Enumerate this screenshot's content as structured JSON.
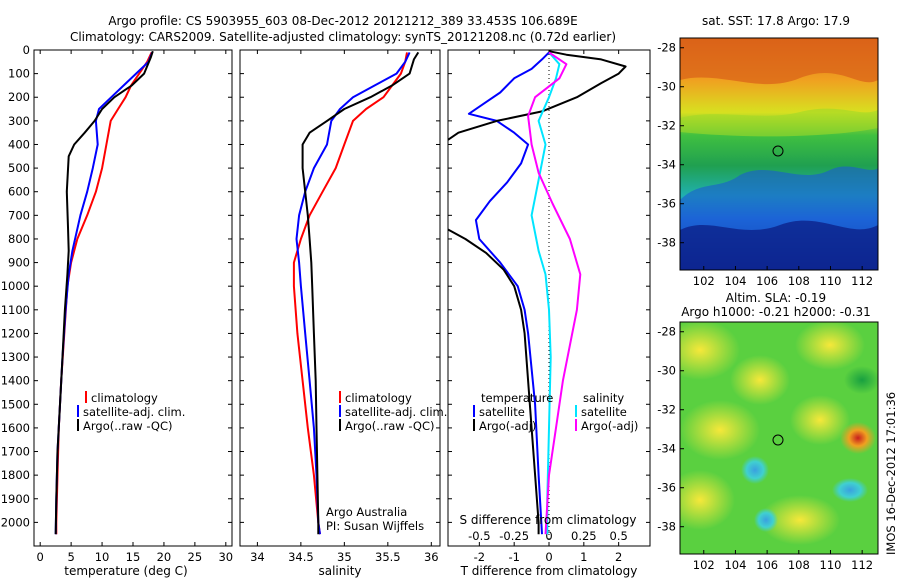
{
  "header": {
    "line1": "Argo profile: CS 5903955_603 08-Dec-2012 20121212_389 33.453S 106.689E",
    "line2": "Climatology: CARS2009. Satellite-adjusted climatology: synTS_20121208.nc (0.72d earlier)"
  },
  "side_stamp": "IMOS 16-Dec-2012 17:01:36",
  "colors": {
    "climatology": "#ff0000",
    "satellite": "#0000ff",
    "argo": "#000000",
    "sat_salt": "#00e5ff",
    "argo_salt": "#ff00ff"
  },
  "chart_data": [
    {
      "id": "temperature",
      "type": "line",
      "xlabel": "temperature (deg C)",
      "ylabel": "",
      "xlim": [
        -1,
        31
      ],
      "ylim": [
        2100,
        0
      ],
      "xticks": [
        "0",
        "5",
        "10",
        "15",
        "20",
        "25",
        "30"
      ],
      "yticks": [
        "0",
        "100",
        "200",
        "300",
        "400",
        "500",
        "600",
        "700",
        "800",
        "900",
        "1000",
        "1100",
        "1200",
        "1300",
        "1400",
        "1500",
        "1600",
        "1700",
        "1800",
        "1900",
        "2000"
      ],
      "legend": [
        "climatology",
        "satellite-adj. clim.",
        "Argo(..raw -QC)"
      ],
      "series": [
        {
          "name": "climatology",
          "color": "#ff0000",
          "points": [
            [
              18.0,
              10
            ],
            [
              17.3,
              50
            ],
            [
              16.0,
              100
            ],
            [
              14.7,
              150
            ],
            [
              13.8,
              200
            ],
            [
              12.6,
              250
            ],
            [
              11.4,
              300
            ],
            [
              10.7,
              400
            ],
            [
              10.0,
              500
            ],
            [
              9.0,
              600
            ],
            [
              7.6,
              700
            ],
            [
              6.0,
              800
            ],
            [
              5.0,
              900
            ],
            [
              4.4,
              1000
            ],
            [
              3.9,
              1200
            ],
            [
              3.4,
              1400
            ],
            [
              3.0,
              1600
            ],
            [
              2.8,
              1800
            ],
            [
              2.6,
              2000
            ],
            [
              2.6,
              2050
            ]
          ]
        },
        {
          "name": "satellite-adj. clim.",
          "color": "#0000ff",
          "points": [
            [
              18.1,
              10
            ],
            [
              17.5,
              50
            ],
            [
              15.5,
              100
            ],
            [
              13.5,
              150
            ],
            [
              11.5,
              200
            ],
            [
              9.5,
              250
            ],
            [
              9.0,
              300
            ],
            [
              9.3,
              400
            ],
            [
              8.5,
              500
            ],
            [
              7.6,
              600
            ],
            [
              6.5,
              700
            ],
            [
              5.2,
              850
            ],
            [
              4.6,
              950
            ],
            [
              4.1,
              1100
            ],
            [
              3.6,
              1300
            ],
            [
              3.2,
              1500
            ],
            [
              2.8,
              1700
            ],
            [
              2.6,
              1900
            ],
            [
              2.5,
              2050
            ]
          ]
        },
        {
          "name": "Argo(..raw -QC)",
          "color": "#000000",
          "points": [
            [
              18.2,
              5
            ],
            [
              17.9,
              30
            ],
            [
              16.8,
              100
            ],
            [
              14.8,
              150
            ],
            [
              12.0,
              200
            ],
            [
              10.0,
              250
            ],
            [
              8.8,
              300
            ],
            [
              7.2,
              350
            ],
            [
              5.5,
              400
            ],
            [
              4.6,
              450
            ],
            [
              4.3,
              600
            ],
            [
              4.5,
              750
            ],
            [
              4.6,
              850
            ],
            [
              4.4,
              950
            ],
            [
              4.0,
              1100
            ],
            [
              3.6,
              1300
            ],
            [
              3.2,
              1500
            ],
            [
              2.8,
              1700
            ],
            [
              2.6,
              1900
            ],
            [
              2.5,
              2050
            ]
          ]
        }
      ]
    },
    {
      "id": "salinity",
      "type": "line",
      "xlabel": "salinity",
      "ylabel": "",
      "xlim": [
        33.8,
        36.1
      ],
      "ylim": [
        2100,
        0
      ],
      "xticks": [
        "34",
        "34.5",
        "35",
        "35.5",
        "36"
      ],
      "annotation": [
        "Argo Australia",
        "PI: Susan Wijffels"
      ],
      "legend": [
        "climatology",
        "satellite-adj. clim.",
        "Argo(..raw -QC)"
      ],
      "series": [
        {
          "name": "climatology",
          "color": "#ff0000",
          "points": [
            [
              35.72,
              10
            ],
            [
              35.7,
              50
            ],
            [
              35.65,
              100
            ],
            [
              35.55,
              150
            ],
            [
              35.45,
              200
            ],
            [
              35.25,
              250
            ],
            [
              35.1,
              300
            ],
            [
              35.0,
              400
            ],
            [
              34.9,
              500
            ],
            [
              34.75,
              600
            ],
            [
              34.6,
              700
            ],
            [
              34.5,
              800
            ],
            [
              34.42,
              900
            ],
            [
              34.42,
              1000
            ],
            [
              34.46,
              1200
            ],
            [
              34.52,
              1400
            ],
            [
              34.58,
              1600
            ],
            [
              34.65,
              1800
            ],
            [
              34.7,
              2000
            ],
            [
              34.72,
              2050
            ]
          ]
        },
        {
          "name": "satellite-adj. clim.",
          "color": "#0000ff",
          "points": [
            [
              35.75,
              10
            ],
            [
              35.7,
              50
            ],
            [
              35.6,
              100
            ],
            [
              35.35,
              150
            ],
            [
              35.1,
              200
            ],
            [
              34.95,
              250
            ],
            [
              34.85,
              300
            ],
            [
              34.8,
              400
            ],
            [
              34.65,
              500
            ],
            [
              34.55,
              600
            ],
            [
              34.48,
              700
            ],
            [
              34.45,
              800
            ],
            [
              34.48,
              900
            ],
            [
              34.5,
              1000
            ],
            [
              34.55,
              1200
            ],
            [
              34.6,
              1400
            ],
            [
              34.65,
              1600
            ],
            [
              34.68,
              1800
            ],
            [
              34.7,
              2000
            ],
            [
              34.72,
              2050
            ]
          ]
        },
        {
          "name": "Argo(..raw -QC)",
          "color": "#000000",
          "points": [
            [
              35.85,
              10
            ],
            [
              35.8,
              40
            ],
            [
              35.75,
              100
            ],
            [
              35.55,
              150
            ],
            [
              35.3,
              200
            ],
            [
              35.0,
              250
            ],
            [
              34.8,
              300
            ],
            [
              34.6,
              350
            ],
            [
              34.52,
              400
            ],
            [
              34.52,
              500
            ],
            [
              34.55,
              600
            ],
            [
              34.58,
              700
            ],
            [
              34.6,
              800
            ],
            [
              34.62,
              900
            ],
            [
              34.63,
              1000
            ],
            [
              34.65,
              1200
            ],
            [
              34.67,
              1400
            ],
            [
              34.68,
              1600
            ],
            [
              34.69,
              1800
            ],
            [
              34.7,
              2000
            ],
            [
              34.7,
              2050
            ]
          ]
        }
      ]
    },
    {
      "id": "differences",
      "type": "line",
      "xlabel": "T difference from climatology",
      "x2label": "S difference from climatology",
      "xlim": [
        -2.9,
        2.9
      ],
      "ylim": [
        2100,
        0
      ],
      "xticks": [
        "-2",
        "-1",
        "0",
        "1",
        "2"
      ],
      "x2ticks": [
        "-0.5",
        "-0.25",
        "0",
        "0.25",
        "0.5"
      ],
      "legend_left_title": "temperature",
      "legend_right_title": "salinity",
      "legend": [
        "satellite",
        "Argo(-adj)",
        "satellite",
        "Argo(-adj)"
      ],
      "series": [
        {
          "name": "temperature satellite",
          "color": "#0000ff",
          "points": [
            [
              0.0,
              10
            ],
            [
              -0.2,
              40
            ],
            [
              -0.5,
              80
            ],
            [
              -1.0,
              120
            ],
            [
              -1.4,
              180
            ],
            [
              -1.9,
              230
            ],
            [
              -2.3,
              270
            ],
            [
              -1.5,
              300
            ],
            [
              -1.0,
              350
            ],
            [
              -0.6,
              400
            ],
            [
              -0.8,
              480
            ],
            [
              -1.2,
              560
            ],
            [
              -1.7,
              640
            ],
            [
              -2.1,
              720
            ],
            [
              -2.0,
              800
            ],
            [
              -1.4,
              900
            ],
            [
              -0.9,
              1000
            ],
            [
              -0.7,
              1100
            ],
            [
              -0.6,
              1200
            ],
            [
              -0.4,
              1500
            ],
            [
              -0.3,
              1800
            ],
            [
              -0.2,
              2050
            ]
          ]
        },
        {
          "name": "temperature Argo(-adj)",
          "color": "#000000",
          "points": [
            [
              0.0,
              5
            ],
            [
              0.5,
              20
            ],
            [
              1.5,
              40
            ],
            [
              2.2,
              70
            ],
            [
              2.0,
              100
            ],
            [
              1.5,
              140
            ],
            [
              0.8,
              200
            ],
            [
              -0.2,
              260
            ],
            [
              -1.5,
              300
            ],
            [
              -2.6,
              350
            ],
            [
              -2.9,
              380
            ]
          ]
        },
        {
          "name": "temperature Argo(-adj) deep",
          "color": "#000000",
          "points": [
            [
              -2.9,
              760
            ],
            [
              -2.4,
              800
            ],
            [
              -1.8,
              860
            ],
            [
              -1.3,
              930
            ],
            [
              -1.0,
              1000
            ],
            [
              -0.8,
              1100
            ],
            [
              -0.7,
              1200
            ],
            [
              -0.6,
              1400
            ],
            [
              -0.5,
              1600
            ],
            [
              -0.4,
              1800
            ],
            [
              -0.3,
              2000
            ],
            [
              -0.3,
              2050
            ]
          ]
        },
        {
          "name": "salinity satellite",
          "color": "#00e5ff",
          "points": [
            [
              0.0,
              10
            ],
            [
              0.3,
              60
            ],
            [
              0.2,
              120
            ],
            [
              0.0,
              200
            ],
            [
              -0.3,
              300
            ],
            [
              -0.1,
              400
            ],
            [
              -0.3,
              550
            ],
            [
              -0.5,
              700
            ],
            [
              -0.3,
              850
            ],
            [
              -0.1,
              950
            ],
            [
              0.0,
              1100
            ],
            [
              0.05,
              1300
            ],
            [
              0.0,
              1600
            ],
            [
              -0.05,
              1900
            ],
            [
              -0.05,
              2050
            ]
          ]
        },
        {
          "name": "salinity Argo(-adj)",
          "color": "#ff00ff",
          "points": [
            [
              0.0,
              10
            ],
            [
              0.5,
              60
            ],
            [
              0.3,
              120
            ],
            [
              -0.4,
              200
            ],
            [
              -0.6,
              280
            ],
            [
              -0.5,
              400
            ],
            [
              -0.3,
              520
            ],
            [
              0.1,
              650
            ],
            [
              0.6,
              800
            ],
            [
              0.9,
              950
            ],
            [
              0.8,
              1100
            ],
            [
              0.6,
              1250
            ],
            [
              0.4,
              1400
            ],
            [
              0.2,
              1600
            ],
            [
              0.0,
              1800
            ],
            [
              -0.1,
              2050
            ]
          ]
        }
      ]
    }
  ],
  "maps": {
    "sst": {
      "title": "sat. SST: 17.8 Argo: 17.9",
      "xticks": [
        "102",
        "104",
        "106",
        "108",
        "110",
        "112"
      ],
      "yticks": [
        "-28",
        "-30",
        "-32",
        "-34",
        "-36",
        "-38"
      ]
    },
    "sla": {
      "title1": "Altim. SLA: -0.19",
      "title2": "Argo h1000: -0.21 h2000: -0.31",
      "xticks": [
        "102",
        "104",
        "106",
        "108",
        "110",
        "112"
      ],
      "yticks": [
        "-28",
        "-30",
        "-32",
        "-34",
        "-36",
        "-38"
      ]
    }
  }
}
